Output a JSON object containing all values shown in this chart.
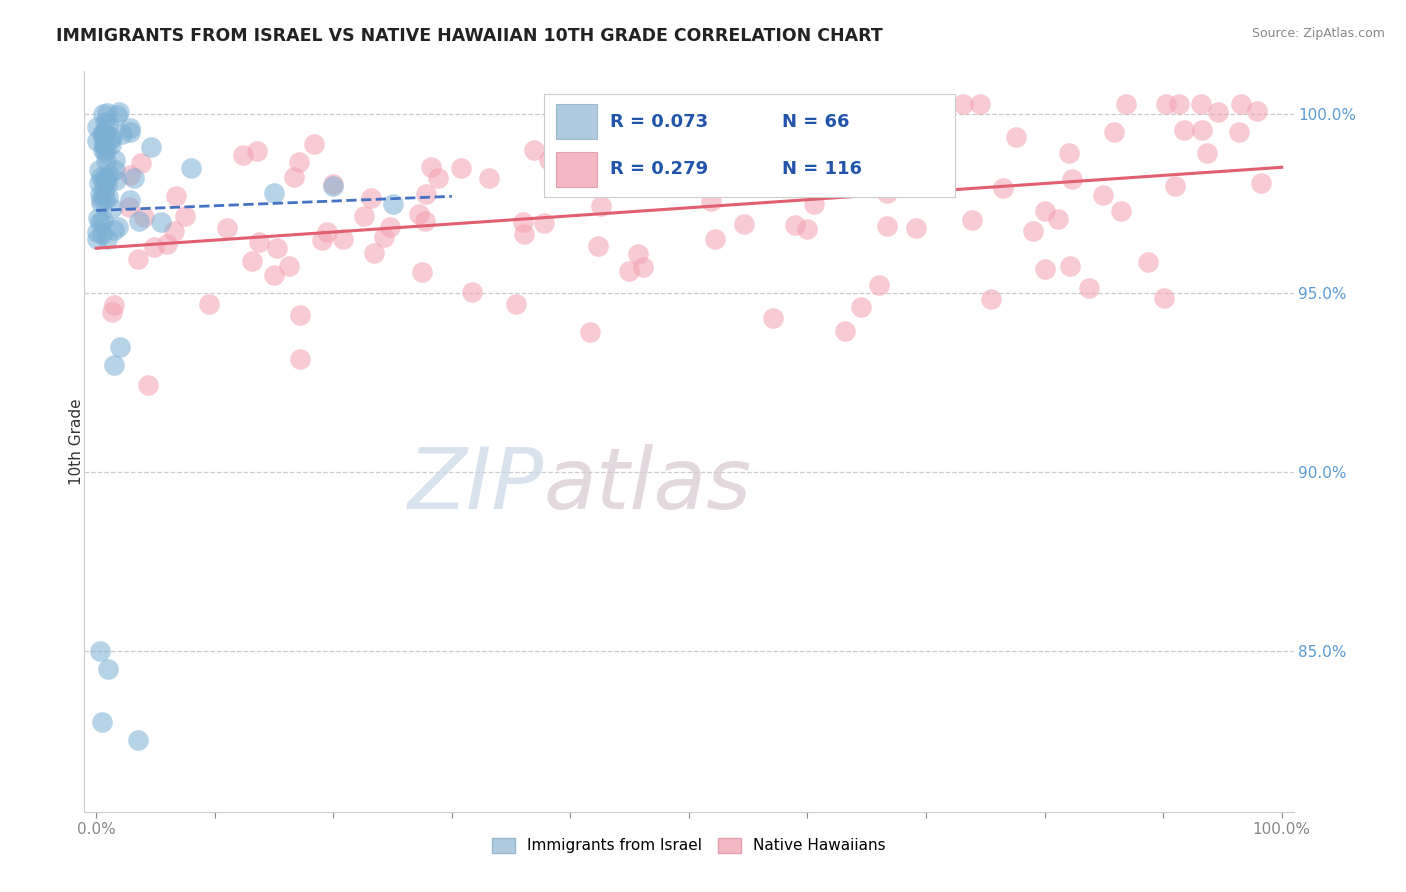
{
  "title": "IMMIGRANTS FROM ISRAEL VS NATIVE HAWAIIAN 10TH GRADE CORRELATION CHART",
  "source_text": "Source: ZipAtlas.com",
  "ylabel": "10th Grade",
  "watermark_zip": "ZIP",
  "watermark_atlas": "atlas",
  "right_yticks": [
    85.0,
    90.0,
    95.0,
    100.0
  ],
  "ylim_min": 80.5,
  "ylim_max": 101.2,
  "legend_label1": "Immigrants from Israel",
  "legend_label2": "Native Hawaiians",
  "blue_color": "#7BAFD4",
  "pink_color": "#F4A0B0",
  "blue_line_color": "#4472C4",
  "pink_line_color": "#E06070",
  "blue_r": 0.073,
  "blue_n": 66,
  "pink_r": 0.279,
  "pink_n": 116
}
